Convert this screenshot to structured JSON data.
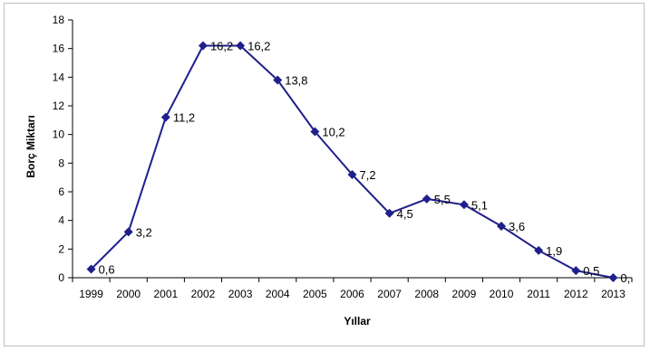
{
  "chart_data": {
    "type": "line",
    "title": "",
    "xlabel": "Yıllar",
    "ylabel": "Borç Miktarı",
    "ylim": [
      0,
      18
    ],
    "yticks": [
      0,
      2,
      4,
      6,
      8,
      10,
      12,
      14,
      16,
      18
    ],
    "grid": false,
    "legend": "none",
    "categories": [
      "1999",
      "2000",
      "2001",
      "2002",
      "2003",
      "2004",
      "2005",
      "2006",
      "2007",
      "2008",
      "2009",
      "2010",
      "2011",
      "2012",
      "2013"
    ],
    "series": [
      {
        "values": [
          0.6,
          3.2,
          11.2,
          16.2,
          16.2,
          13.8,
          10.2,
          7.2,
          4.5,
          5.5,
          5.1,
          3.6,
          1.9,
          0.5,
          0
        ],
        "data_labels": [
          "0,6",
          "3,2",
          "11,2",
          "16,2",
          "16,2",
          "13,8",
          "10,2",
          "7,2",
          "4,5",
          "5,5",
          "5,1",
          "3,6",
          "1,9",
          "0,5",
          "0,"
        ],
        "color": "#1f1f8c"
      }
    ]
  }
}
